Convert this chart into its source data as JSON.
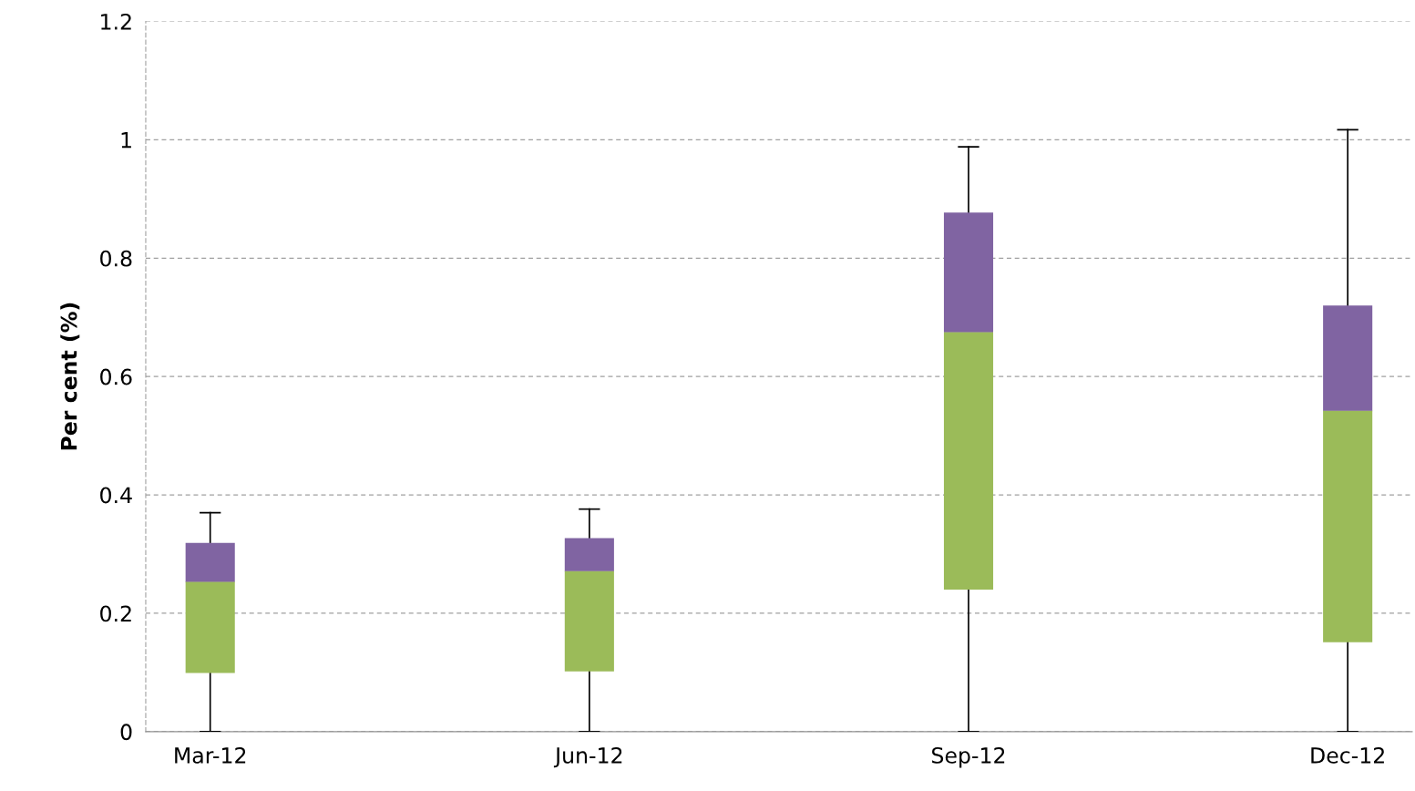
{
  "chart_data": {
    "type": "box",
    "ylabel": "Per cent (%)",
    "categories": [
      "Mar-12",
      "Jun-12",
      "Sep-12",
      "Dec-12"
    ],
    "boxes": [
      {
        "low": 0,
        "q1": 0.099,
        "median": 0.253,
        "q3": 0.319,
        "high": 0.37
      },
      {
        "low": 0,
        "q1": 0.102,
        "median": 0.271,
        "q3": 0.327,
        "high": 0.376
      },
      {
        "low": 0,
        "q1": 0.24,
        "median": 0.675,
        "q3": 0.877,
        "high": 0.988
      },
      {
        "low": 0,
        "q1": 0.151,
        "median": 0.542,
        "q3": 0.72,
        "high": 1.017
      }
    ],
    "color": "#8064a2",
    "colors": [
      "#9bbb59",
      "#9bbb59",
      "#9bbb59",
      "#9bbb59"
    ],
    "ylim": [
      0,
      1.2
    ],
    "yticks": [
      0,
      0.2,
      0.4,
      0.6,
      0.8,
      1,
      1.2
    ],
    "grid": "y"
  }
}
